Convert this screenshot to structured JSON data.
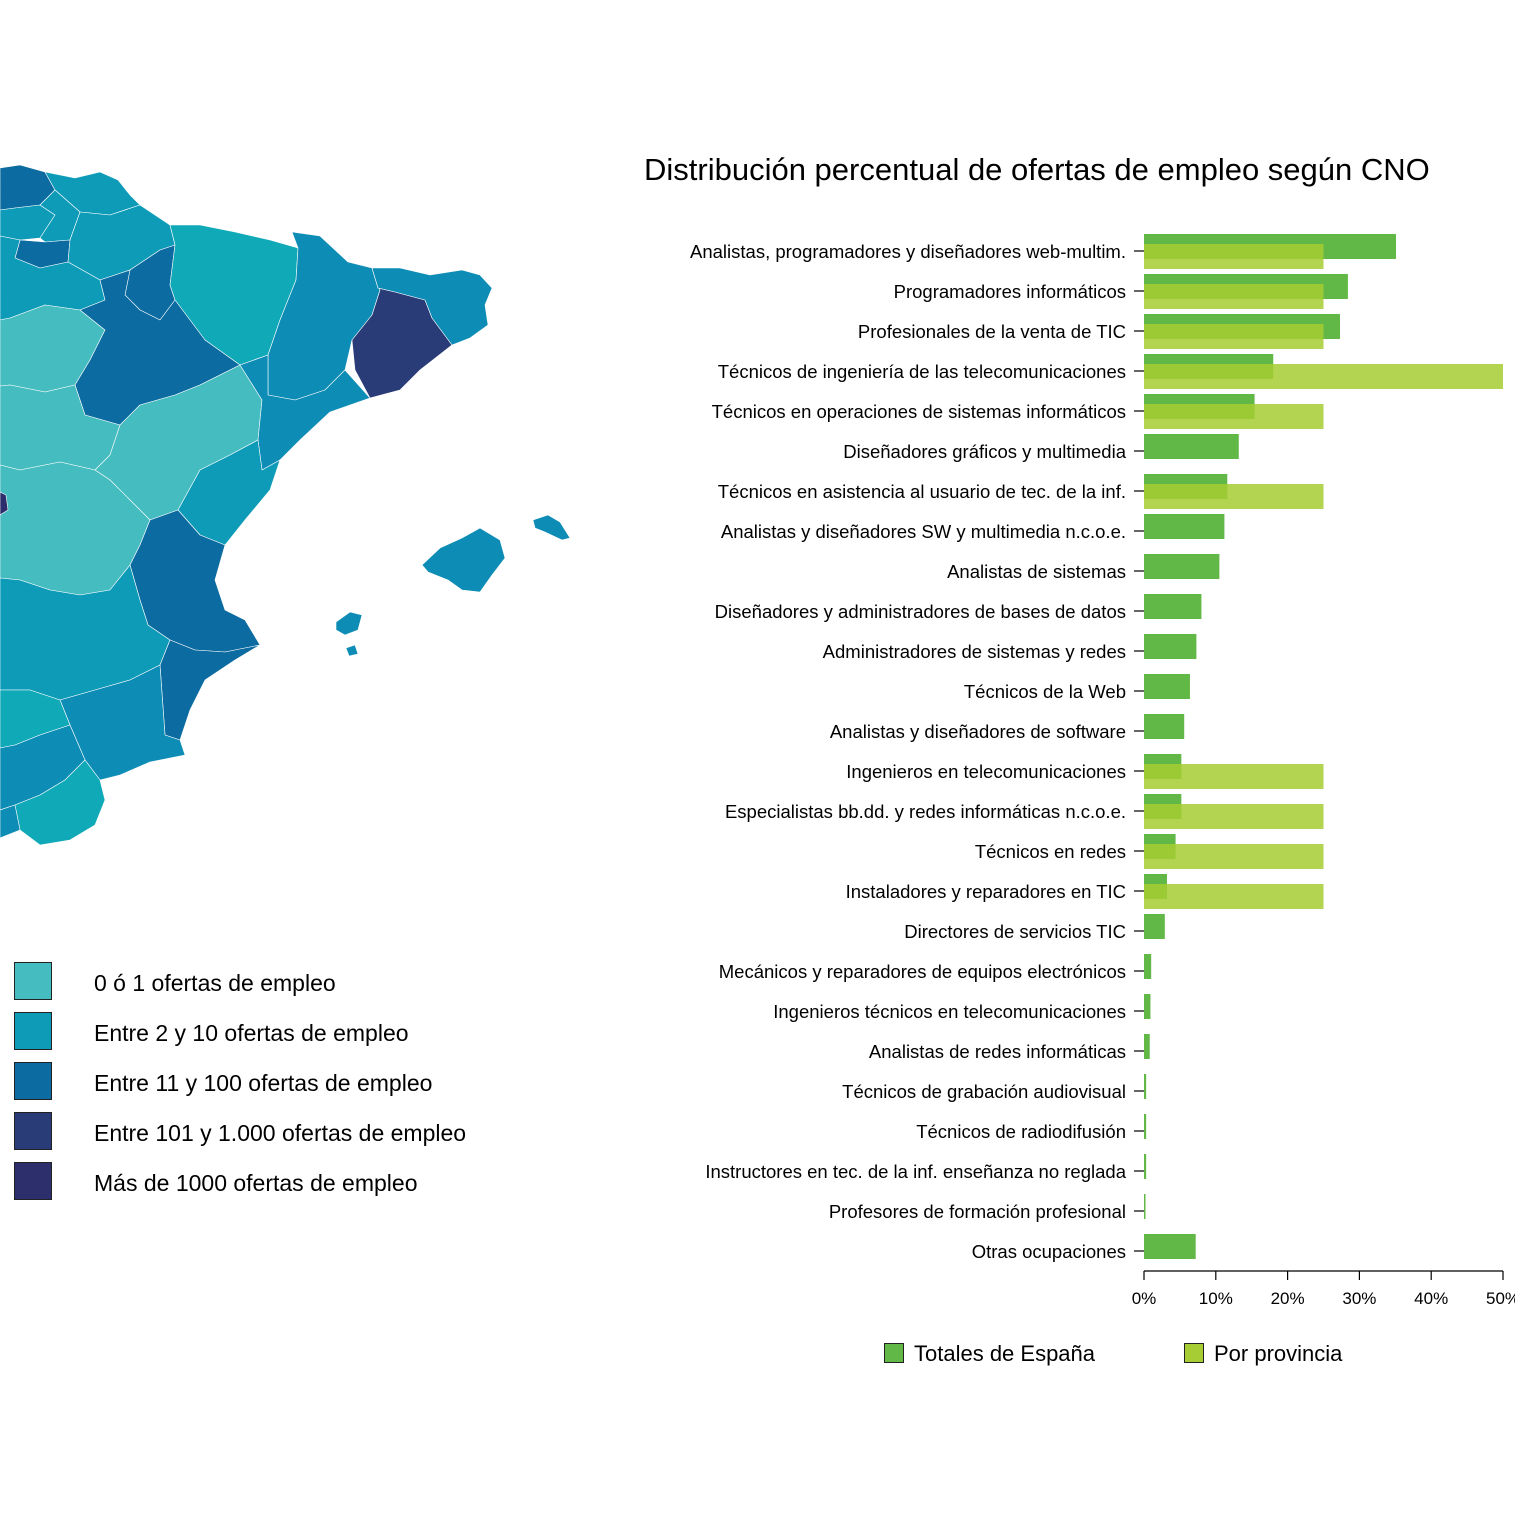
{
  "map": {
    "legend": [
      {
        "label": "0 ó 1 ofertas de empleo",
        "color": "#45bcbf"
      },
      {
        "label": "Entre 2 y 10 ofertas de empleo",
        "color": "#0d9bb8"
      },
      {
        "label": "Entre 11 y 100 ofertas de empleo",
        "color": "#0c6ba0"
      },
      {
        "label": "Entre 101 y 1.000 ofertas de empleo",
        "color": "#2a3c78"
      },
      {
        "label": "Más de 1000 ofertas de empleo",
        "color": "#2c2f6b"
      }
    ]
  },
  "chart_data": {
    "type": "bar",
    "orientation": "horizontal",
    "title": "Distribución percentual de ofertas de empleo según CNO",
    "xlabel": "",
    "ylabel": "",
    "xlim": [
      0,
      50
    ],
    "x_ticks": [
      "0%",
      "10%",
      "20%",
      "30%",
      "40%",
      "50%"
    ],
    "categories": [
      "Analistas, programadores y diseñadores web-multim.",
      "Programadores informáticos",
      "Profesionales de la venta de TIC",
      "Técnicos de ingeniería de las telecomunicaciones",
      "Técnicos en operaciones de sistemas informáticos",
      "Diseñadores gráficos y multimedia",
      "Técnicos en asistencia al usuario de tec. de la inf.",
      "Analistas y diseñadores SW y multimedia n.c.o.e.",
      "Analistas de sistemas",
      "Diseñadores y administradores de bases de datos",
      "Administradores de sistemas y redes",
      "Técnicos de la Web",
      "Analistas y diseñadores de software",
      "Ingenieros en telecomunicaciones",
      "Especialistas bb.dd. y redes informáticas n.c.o.e.",
      "Técnicos en redes",
      "Instaladores y reparadores en TIC",
      "Directores de servicios TIC",
      "Mecánicos y reparadores de equipos electrónicos",
      "Ingenieros técnicos en telecomunicaciones",
      "Analistas de redes informáticas",
      "Técnicos de grabación audiovisual",
      "Técnicos de radiodifusión",
      "Instructores en tec. de la inf. enseñanza no reglada",
      "Profesores de formación profesional",
      "Otras ocupaciones"
    ],
    "series": [
      {
        "name": "Totales de España",
        "color": "#62b846",
        "values": [
          35.1,
          28.4,
          27.3,
          18.0,
          15.4,
          13.2,
          11.6,
          11.2,
          10.5,
          8.0,
          7.3,
          6.4,
          5.6,
          5.2,
          5.2,
          4.4,
          3.2,
          2.9,
          1.0,
          0.9,
          0.8,
          0.3,
          0.3,
          0.3,
          0.2,
          7.2
        ]
      },
      {
        "name": "Por provincia",
        "color": "#a6cd33",
        "values": [
          25,
          25,
          25,
          50,
          25,
          0,
          25,
          0,
          0,
          0,
          0,
          0,
          0,
          25,
          25,
          25,
          25,
          0,
          0,
          0,
          0,
          0,
          0,
          0,
          0,
          0
        ]
      }
    ],
    "legend_position": "bottom"
  }
}
